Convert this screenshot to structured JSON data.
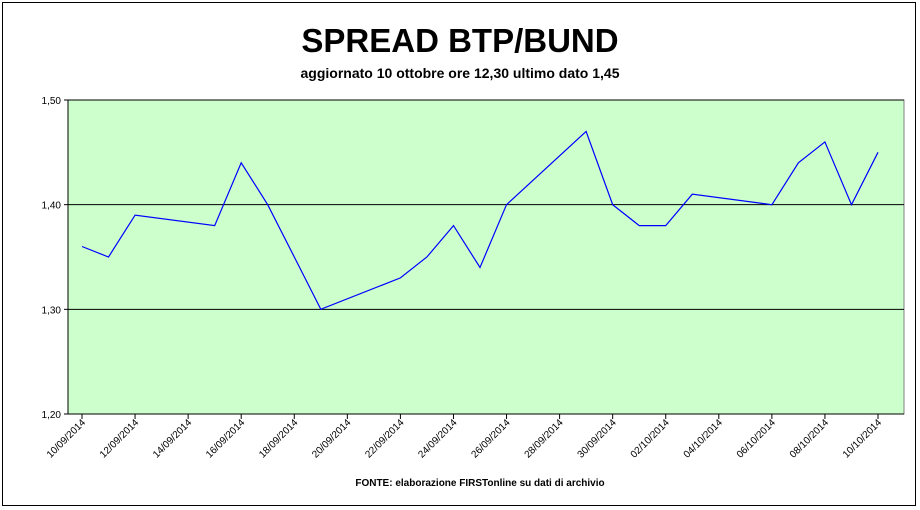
{
  "title": "SPREAD BTP/BUND",
  "subtitle": "aggiornato 10 ottobre ore 12,30 ultimo dato 1,45",
  "source": "FONTE: elaborazione FIRSTonline su dati di archivio",
  "colors": {
    "plot_bg": "#ccffcc",
    "line": "#0000ff",
    "grid": "#000000"
  },
  "chart_data": {
    "type": "line",
    "title": "SPREAD BTP/BUND",
    "ylim": [
      1.2,
      1.5
    ],
    "yticks": [
      1.2,
      1.3,
      1.4,
      1.5
    ],
    "ytick_labels": [
      "1,20",
      "1,30",
      "1,40",
      "1,50"
    ],
    "grid": "horizontal",
    "xlim": [
      "2014-09-10",
      "2014-10-10"
    ],
    "xtick_labels": [
      "10/09/2014",
      "12/09/2014",
      "14/09/2014",
      "16/09/2014",
      "18/09/2014",
      "20/09/2014",
      "22/09/2014",
      "24/09/2014",
      "26/09/2014",
      "28/09/2014",
      "30/09/2014",
      "02/10/2014",
      "04/10/2014",
      "06/10/2014",
      "08/10/2014",
      "10/10/2014"
    ],
    "xticks": [
      "2014-09-10",
      "2014-09-12",
      "2014-09-14",
      "2014-09-16",
      "2014-09-18",
      "2014-09-20",
      "2014-09-22",
      "2014-09-24",
      "2014-09-26",
      "2014-09-28",
      "2014-09-30",
      "2014-10-02",
      "2014-10-04",
      "2014-10-06",
      "2014-10-08",
      "2014-10-10"
    ],
    "series": [
      {
        "values": [
          {
            "x": "2014-09-10",
            "y": 1.36
          },
          {
            "x": "2014-09-11",
            "y": 1.35
          },
          {
            "x": "2014-09-12",
            "y": 1.39
          },
          {
            "x": "2014-09-15",
            "y": 1.38
          },
          {
            "x": "2014-09-16",
            "y": 1.44
          },
          {
            "x": "2014-09-17",
            "y": 1.4
          },
          {
            "x": "2014-09-18",
            "y": 1.35
          },
          {
            "x": "2014-09-19",
            "y": 1.3
          },
          {
            "x": "2014-09-22",
            "y": 1.33
          },
          {
            "x": "2014-09-23",
            "y": 1.35
          },
          {
            "x": "2014-09-24",
            "y": 1.38
          },
          {
            "x": "2014-09-25",
            "y": 1.34
          },
          {
            "x": "2014-09-26",
            "y": 1.4
          },
          {
            "x": "2014-09-29",
            "y": 1.47
          },
          {
            "x": "2014-09-30",
            "y": 1.4
          },
          {
            "x": "2014-10-01",
            "y": 1.38
          },
          {
            "x": "2014-10-02",
            "y": 1.38
          },
          {
            "x": "2014-10-03",
            "y": 1.41
          },
          {
            "x": "2014-10-06",
            "y": 1.4
          },
          {
            "x": "2014-10-07",
            "y": 1.44
          },
          {
            "x": "2014-10-08",
            "y": 1.46
          },
          {
            "x": "2014-10-09",
            "y": 1.4
          },
          {
            "x": "2014-10-10",
            "y": 1.45
          }
        ]
      }
    ]
  }
}
